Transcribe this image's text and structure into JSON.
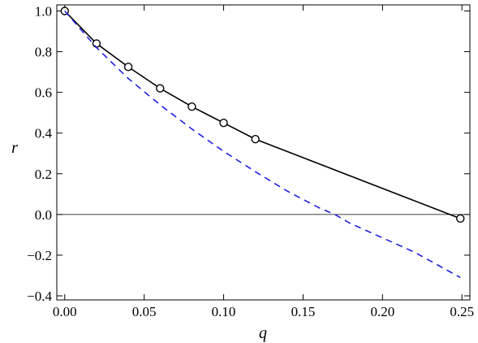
{
  "chart_data": {
    "type": "line",
    "xlabel": "q",
    "ylabel": "r",
    "xlim": [
      -0.005,
      0.255
    ],
    "ylim": [
      -0.42,
      1.03
    ],
    "x_ticks": [
      0.0,
      0.05,
      0.1,
      0.15,
      0.2,
      0.25
    ],
    "x_tick_labels": [
      "0.00",
      "0.05",
      "0.10",
      "0.15",
      "0.20",
      "0.25"
    ],
    "y_ticks": [
      -0.4,
      -0.2,
      0.0,
      0.2,
      0.4,
      0.6,
      0.8,
      1.0
    ],
    "y_tick_labels": [
      "−0.4",
      "−0.2",
      "0.0",
      "0.2",
      "0.4",
      "0.6",
      "0.8",
      "1.0"
    ],
    "zero_line": 0,
    "grid": false,
    "series": [
      {
        "style": "solid-with-circle-markers",
        "color": "#000000",
        "x": [
          0.0,
          0.02,
          0.04,
          0.06,
          0.08,
          0.1,
          0.12,
          0.249
        ],
        "y": [
          1.0,
          0.84,
          0.725,
          0.62,
          0.53,
          0.45,
          0.37,
          -0.02
        ]
      },
      {
        "style": "dashed",
        "color": "#2222dd",
        "x": [
          0.0,
          0.02,
          0.04,
          0.06,
          0.08,
          0.1,
          0.12,
          0.14,
          0.16,
          0.17,
          0.18,
          0.2,
          0.22,
          0.249
        ],
        "y": [
          1.0,
          0.82,
          0.668,
          0.539,
          0.42,
          0.31,
          0.21,
          0.115,
          0.033,
          0.0,
          -0.045,
          -0.115,
          -0.185,
          -0.31
        ]
      }
    ]
  }
}
